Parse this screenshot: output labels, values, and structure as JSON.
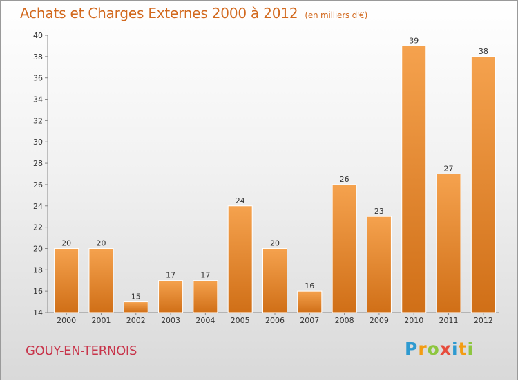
{
  "header": {
    "title": "Achats et Charges Externes 2000 à 2012",
    "subtitle": "(en milliers d'€)"
  },
  "footer": {
    "commune": "GOUY-EN-TERNOIS",
    "brand_letters": [
      {
        "char": "P",
        "color": "#2e9ad0"
      },
      {
        "char": "r",
        "color": "#f39c12"
      },
      {
        "char": "o",
        "color": "#8dc63f"
      },
      {
        "char": "x",
        "color": "#e74c3c"
      },
      {
        "char": "i",
        "color": "#2e9ad0"
      },
      {
        "char": "t",
        "color": "#f39c12"
      },
      {
        "char": "i",
        "color": "#8dc63f"
      }
    ]
  },
  "chart_data": {
    "type": "bar",
    "categories": [
      "2000",
      "2001",
      "2002",
      "2003",
      "2004",
      "2005",
      "2006",
      "2007",
      "2008",
      "2009",
      "2010",
      "2011",
      "2012"
    ],
    "values": [
      20,
      20,
      15,
      17,
      17,
      24,
      20,
      16,
      26,
      23,
      39,
      27,
      38
    ],
    "ylim": [
      14,
      40
    ],
    "yticks": [
      14,
      16,
      18,
      20,
      22,
      24,
      26,
      28,
      30,
      32,
      34,
      36,
      38,
      40
    ],
    "bar_color_top": "#f5a24e",
    "bar_color_bottom": "#d06f17",
    "grid": false
  }
}
